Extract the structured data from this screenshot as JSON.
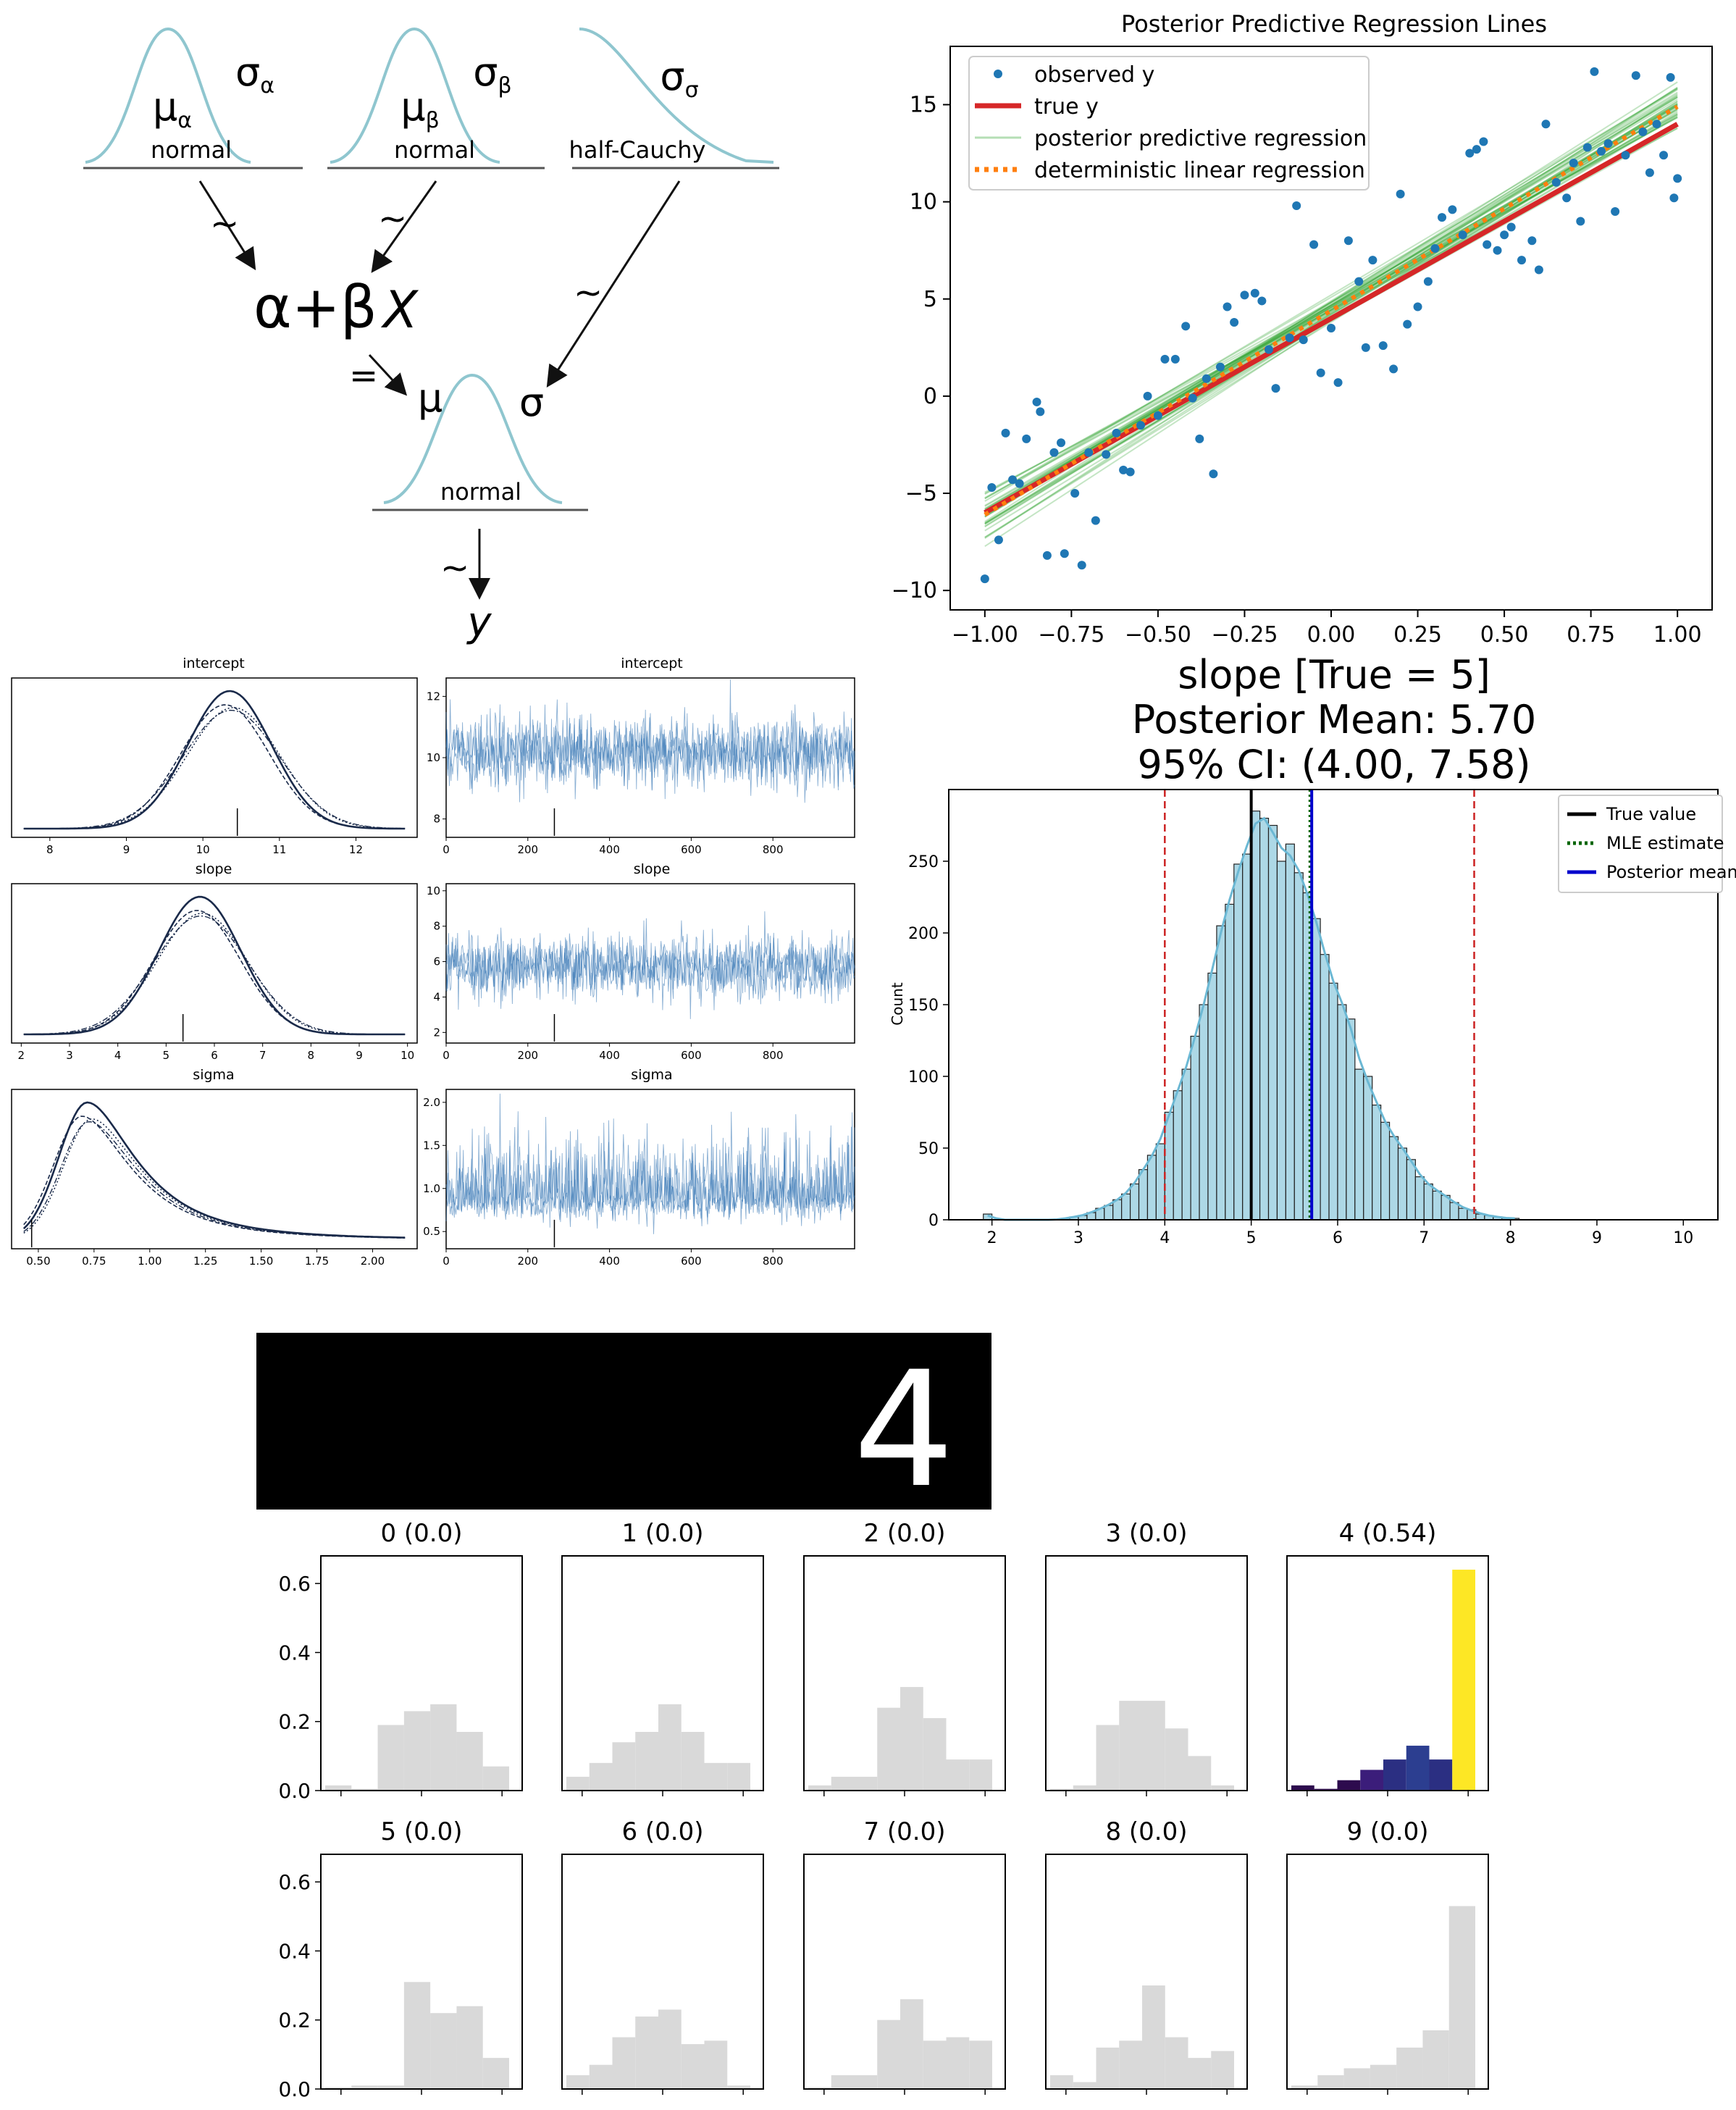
{
  "diagram": {
    "priors": [
      {
        "mu": "μ",
        "mu_sub": "α",
        "sigma": "σ",
        "sigma_sub": "α",
        "dist": "normal"
      },
      {
        "mu": "μ",
        "mu_sub": "β",
        "sigma": "σ",
        "sigma_sub": "β",
        "dist": "normal"
      },
      {
        "sigma": "σ",
        "sigma_sub": "σ",
        "dist": "half-Cauchy"
      }
    ],
    "tilde": "~",
    "equals": "=",
    "linear": "α+β",
    "linear_x": "X",
    "likelihood": {
      "mu": "μ",
      "sigma": "σ",
      "dist": "normal"
    },
    "outcome": "y",
    "colors": {
      "curve": "#8fc6cf",
      "line": "#555555"
    }
  },
  "chart_data": [
    {
      "id": "regression",
      "type": "scatter",
      "title": "Posterior Predictive Regression Lines",
      "xlim": [
        -1.1,
        1.1
      ],
      "ylim": [
        -11,
        18
      ],
      "xticks": [
        -1.0,
        -0.75,
        -0.5,
        -0.25,
        0.0,
        0.25,
        0.5,
        0.75,
        1.0
      ],
      "xtick_labels": [
        "−1.00",
        "−0.75",
        "−0.50",
        "−0.25",
        "0.00",
        "0.25",
        "0.50",
        "0.75",
        "1.00"
      ],
      "yticks": [
        -10,
        -5,
        0,
        5,
        10,
        15
      ],
      "ytick_labels": [
        "−10",
        "−5",
        "0",
        "5",
        "10",
        "15"
      ],
      "legend": [
        "observed y",
        "true y",
        "posterior predictive regression",
        "deterministic linear regression"
      ],
      "legend_position": "top-left",
      "colors": {
        "observed": "#1f77b4",
        "true": "#d62728",
        "posterior": "#2ca02c",
        "deterministic": "#ff7f0e"
      },
      "true_line": {
        "intercept": 4,
        "slope": 10
      },
      "deterministic_line": {
        "intercept": 4.4,
        "slope": 10.5
      },
      "observed": [
        [
          -1.0,
          -9.4
        ],
        [
          -0.98,
          -4.7
        ],
        [
          -0.96,
          -7.4
        ],
        [
          -0.94,
          -1.9
        ],
        [
          -0.92,
          -4.3
        ],
        [
          -0.9,
          -4.5
        ],
        [
          -0.88,
          -2.2
        ],
        [
          -0.85,
          -0.3
        ],
        [
          -0.84,
          -0.8
        ],
        [
          -0.82,
          -8.2
        ],
        [
          -0.8,
          -2.9
        ],
        [
          -0.78,
          -2.4
        ],
        [
          -0.77,
          -8.1
        ],
        [
          -0.74,
          -5.0
        ],
        [
          -0.72,
          -8.7
        ],
        [
          -0.7,
          -2.9
        ],
        [
          -0.68,
          -6.4
        ],
        [
          -0.65,
          -3.0
        ],
        [
          -0.62,
          -1.9
        ],
        [
          -0.6,
          -3.8
        ],
        [
          -0.58,
          -3.9
        ],
        [
          -0.55,
          -1.5
        ],
        [
          -0.53,
          0.0
        ],
        [
          -0.5,
          -1.0
        ],
        [
          -0.48,
          1.9
        ],
        [
          -0.45,
          1.9
        ],
        [
          -0.42,
          3.6
        ],
        [
          -0.4,
          -0.1
        ],
        [
          -0.38,
          -2.2
        ],
        [
          -0.36,
          0.9
        ],
        [
          -0.34,
          -4.0
        ],
        [
          -0.32,
          1.5
        ],
        [
          -0.3,
          4.6
        ],
        [
          -0.28,
          3.8
        ],
        [
          -0.25,
          5.2
        ],
        [
          -0.22,
          5.3
        ],
        [
          -0.2,
          4.9
        ],
        [
          -0.18,
          2.4
        ],
        [
          -0.16,
          0.4
        ],
        [
          -0.12,
          3.0
        ],
        [
          -0.1,
          9.8
        ],
        [
          -0.08,
          2.9
        ],
        [
          -0.05,
          7.8
        ],
        [
          -0.03,
          1.2
        ],
        [
          0.0,
          3.5
        ],
        [
          0.02,
          0.7
        ],
        [
          0.05,
          8.0
        ],
        [
          0.08,
          5.9
        ],
        [
          0.1,
          2.5
        ],
        [
          0.12,
          7.0
        ],
        [
          0.15,
          2.6
        ],
        [
          0.18,
          1.4
        ],
        [
          0.2,
          10.4
        ],
        [
          0.22,
          3.7
        ],
        [
          0.25,
          4.6
        ],
        [
          0.28,
          5.9
        ],
        [
          0.3,
          7.6
        ],
        [
          0.32,
          9.2
        ],
        [
          0.35,
          9.6
        ],
        [
          0.38,
          8.3
        ],
        [
          0.4,
          12.5
        ],
        [
          0.42,
          12.7
        ],
        [
          0.44,
          13.1
        ],
        [
          0.45,
          7.8
        ],
        [
          0.48,
          7.5
        ],
        [
          0.5,
          8.3
        ],
        [
          0.52,
          8.7
        ],
        [
          0.55,
          7.0
        ],
        [
          0.58,
          8.0
        ],
        [
          0.6,
          6.5
        ],
        [
          0.62,
          14.0
        ],
        [
          0.65,
          11.0
        ],
        [
          0.68,
          10.2
        ],
        [
          0.7,
          12.0
        ],
        [
          0.72,
          9.0
        ],
        [
          0.74,
          12.8
        ],
        [
          0.76,
          16.7
        ],
        [
          0.78,
          12.6
        ],
        [
          0.8,
          13.0
        ],
        [
          0.82,
          9.5
        ],
        [
          0.85,
          12.4
        ],
        [
          0.88,
          16.5
        ],
        [
          0.9,
          13.6
        ],
        [
          0.92,
          11.5
        ],
        [
          0.94,
          14.0
        ],
        [
          0.96,
          12.4
        ],
        [
          0.98,
          16.4
        ],
        [
          0.99,
          10.2
        ],
        [
          1.0,
          11.2
        ]
      ]
    },
    {
      "id": "trace-intercept-density",
      "type": "line",
      "title": "intercept",
      "xlim": [
        7.5,
        12.8
      ],
      "xticks": [
        8,
        9,
        10,
        11,
        12
      ],
      "kde": {
        "mean": 10.35,
        "sd": 0.55
      },
      "ref_mark": 10.45,
      "colors": {
        "line": "#1a2a4a"
      }
    },
    {
      "id": "trace-intercept-samples",
      "type": "line",
      "title": "intercept",
      "xlim": [
        0,
        1000
      ],
      "ylim": [
        7.4,
        12.6
      ],
      "xticks": [
        0,
        200,
        400,
        600,
        800
      ],
      "yticks": [
        8,
        10,
        12
      ],
      "trace": {
        "mean": 10.2,
        "sd": 0.55
      },
      "ref_mark": 265,
      "colors": {
        "line": "#2b6fb0"
      }
    },
    {
      "id": "trace-slope-density",
      "type": "line",
      "title": "slope",
      "xlim": [
        1.8,
        10.2
      ],
      "xticks": [
        2,
        3,
        4,
        5,
        6,
        7,
        8,
        9,
        10
      ],
      "kde": {
        "mean": 5.7,
        "sd": 0.85
      },
      "ref_mark": 5.35,
      "colors": {
        "line": "#1a2a4a"
      }
    },
    {
      "id": "trace-slope-samples",
      "type": "line",
      "title": "slope",
      "xlim": [
        0,
        1000
      ],
      "ylim": [
        1.4,
        10.4
      ],
      "xticks": [
        0,
        200,
        400,
        600,
        800
      ],
      "yticks": [
        2,
        4,
        6,
        8,
        10
      ],
      "trace": {
        "mean": 5.7,
        "sd": 0.9
      },
      "ref_mark": 265,
      "colors": {
        "line": "#2b6fb0"
      }
    },
    {
      "id": "trace-sigma-density",
      "type": "line",
      "title": "sigma",
      "xlim": [
        0.38,
        2.2
      ],
      "xticks": [
        0.5,
        0.75,
        1.0,
        1.25,
        1.5,
        1.75,
        2.0
      ],
      "xtick_labels": [
        "0.50",
        "0.75",
        "1.00",
        "1.25",
        "1.50",
        "1.75",
        "2.00"
      ],
      "kde": {
        "mode": 0.72,
        "sd": 0.16,
        "tail": 0.5
      },
      "ref_mark": 0.47,
      "colors": {
        "line": "#1a2a4a"
      }
    },
    {
      "id": "trace-sigma-samples",
      "type": "line",
      "title": "sigma",
      "xlim": [
        0,
        1000
      ],
      "ylim": [
        0.3,
        2.15
      ],
      "xticks": [
        0,
        200,
        400,
        600,
        800
      ],
      "yticks": [
        0.5,
        1.0,
        1.5,
        2.0
      ],
      "ytick_labels": [
        "0.5",
        "1.0",
        "1.5",
        "2.0"
      ],
      "trace": {
        "mean": 0.9,
        "sd": 0.25
      },
      "ref_mark": 265,
      "colors": {
        "line": "#2b6fb0"
      }
    },
    {
      "id": "slope-posterior",
      "type": "bar",
      "title": "slope [True = 5]",
      "subtitle_1": "Posterior Mean: 5.70",
      "subtitle_2": "95% CI: (4.00, 7.58)",
      "ylabel": "Count",
      "xlim": [
        1.5,
        10.4
      ],
      "ylim": [
        0,
        300
      ],
      "xticks": [
        2,
        3,
        4,
        5,
        6,
        7,
        8,
        9,
        10
      ],
      "yticks": [
        0,
        50,
        100,
        150,
        200,
        250
      ],
      "legend": [
        "True value",
        "MLE estimate",
        "Posterior mean"
      ],
      "legend_position": "top-right",
      "true_value": 5,
      "mle_estimate": 5.68,
      "posterior_mean": 5.7,
      "ci": [
        4.0,
        7.58
      ],
      "bin_start": 1.9,
      "bin_width": 0.1,
      "counts": [
        4,
        0,
        0,
        0,
        0,
        0,
        0,
        0,
        0,
        1,
        2,
        3,
        5,
        8,
        10,
        14,
        18,
        25,
        35,
        45,
        53,
        75,
        90,
        105,
        128,
        150,
        172,
        205,
        220,
        248,
        255,
        285,
        280,
        275,
        250,
        262,
        242,
        228,
        210,
        185,
        165,
        150,
        140,
        105,
        100,
        80,
        68,
        58,
        50,
        42,
        30,
        25,
        20,
        17,
        12,
        8,
        7,
        4,
        3,
        2,
        1,
        1
      ],
      "colors": {
        "bar": "#add8e6",
        "edge": "#222222",
        "kde": "#6bb8d4",
        "true": "#000000",
        "mle": "#006400",
        "mean": "#0000cc",
        "ci": "#cc2222"
      }
    },
    {
      "id": "digit-predictions",
      "type": "bar",
      "input_label": "4",
      "panels": [
        {
          "title": "0 (0.0)",
          "values": [
            0.015,
            0.005,
            0.19,
            0.23,
            0.25,
            0.17,
            0.07
          ]
        },
        {
          "title": "1 (0.0)",
          "values": [
            0.04,
            0.08,
            0.14,
            0.17,
            0.25,
            0.17,
            0.08,
            0.08
          ]
        },
        {
          "title": "2 (0.0)",
          "values": [
            0.015,
            0.04,
            0.04,
            0.24,
            0.3,
            0.21,
            0.09,
            0.09
          ]
        },
        {
          "title": "3 (0.0)",
          "values": [
            0.005,
            0.015,
            0.19,
            0.26,
            0.26,
            0.18,
            0.1,
            0.015
          ]
        },
        {
          "title": "4 (0.54)",
          "values": [
            0.015,
            0.005,
            0.03,
            0.06,
            0.09,
            0.13,
            0.09,
            0.64
          ],
          "highlight": true
        },
        {
          "title": "5 (0.0)",
          "values": [
            0.005,
            0.01,
            0.01,
            0.31,
            0.22,
            0.24,
            0.09
          ]
        },
        {
          "title": "6 (0.0)",
          "values": [
            0.04,
            0.07,
            0.15,
            0.21,
            0.23,
            0.13,
            0.14,
            0.01
          ]
        },
        {
          "title": "7 (0.0)",
          "values": [
            0.005,
            0.04,
            0.04,
            0.2,
            0.26,
            0.14,
            0.15,
            0.14
          ]
        },
        {
          "title": "8 (0.0)",
          "values": [
            0.04,
            0.02,
            0.12,
            0.14,
            0.3,
            0.15,
            0.09,
            0.11
          ]
        },
        {
          "title": "9 (0.0)",
          "values": [
            0.01,
            0.04,
            0.06,
            0.07,
            0.12,
            0.17,
            0.53
          ]
        }
      ],
      "ylim": [
        0,
        0.68
      ],
      "yticks": [
        0.0,
        0.2,
        0.4,
        0.6
      ],
      "ytick_labels": [
        "0.0",
        "0.2",
        "0.4",
        "0.6"
      ],
      "colors": {
        "bar": "#d9d9d9",
        "highlight": [
          "#2d0b4e",
          "#2d0b4e",
          "#2d0b4e",
          "#3b1d7a",
          "#2b2f82",
          "#2c3e90",
          "#2b2f82",
          "#fde725"
        ],
        "image_bg": "#000000"
      }
    }
  ]
}
